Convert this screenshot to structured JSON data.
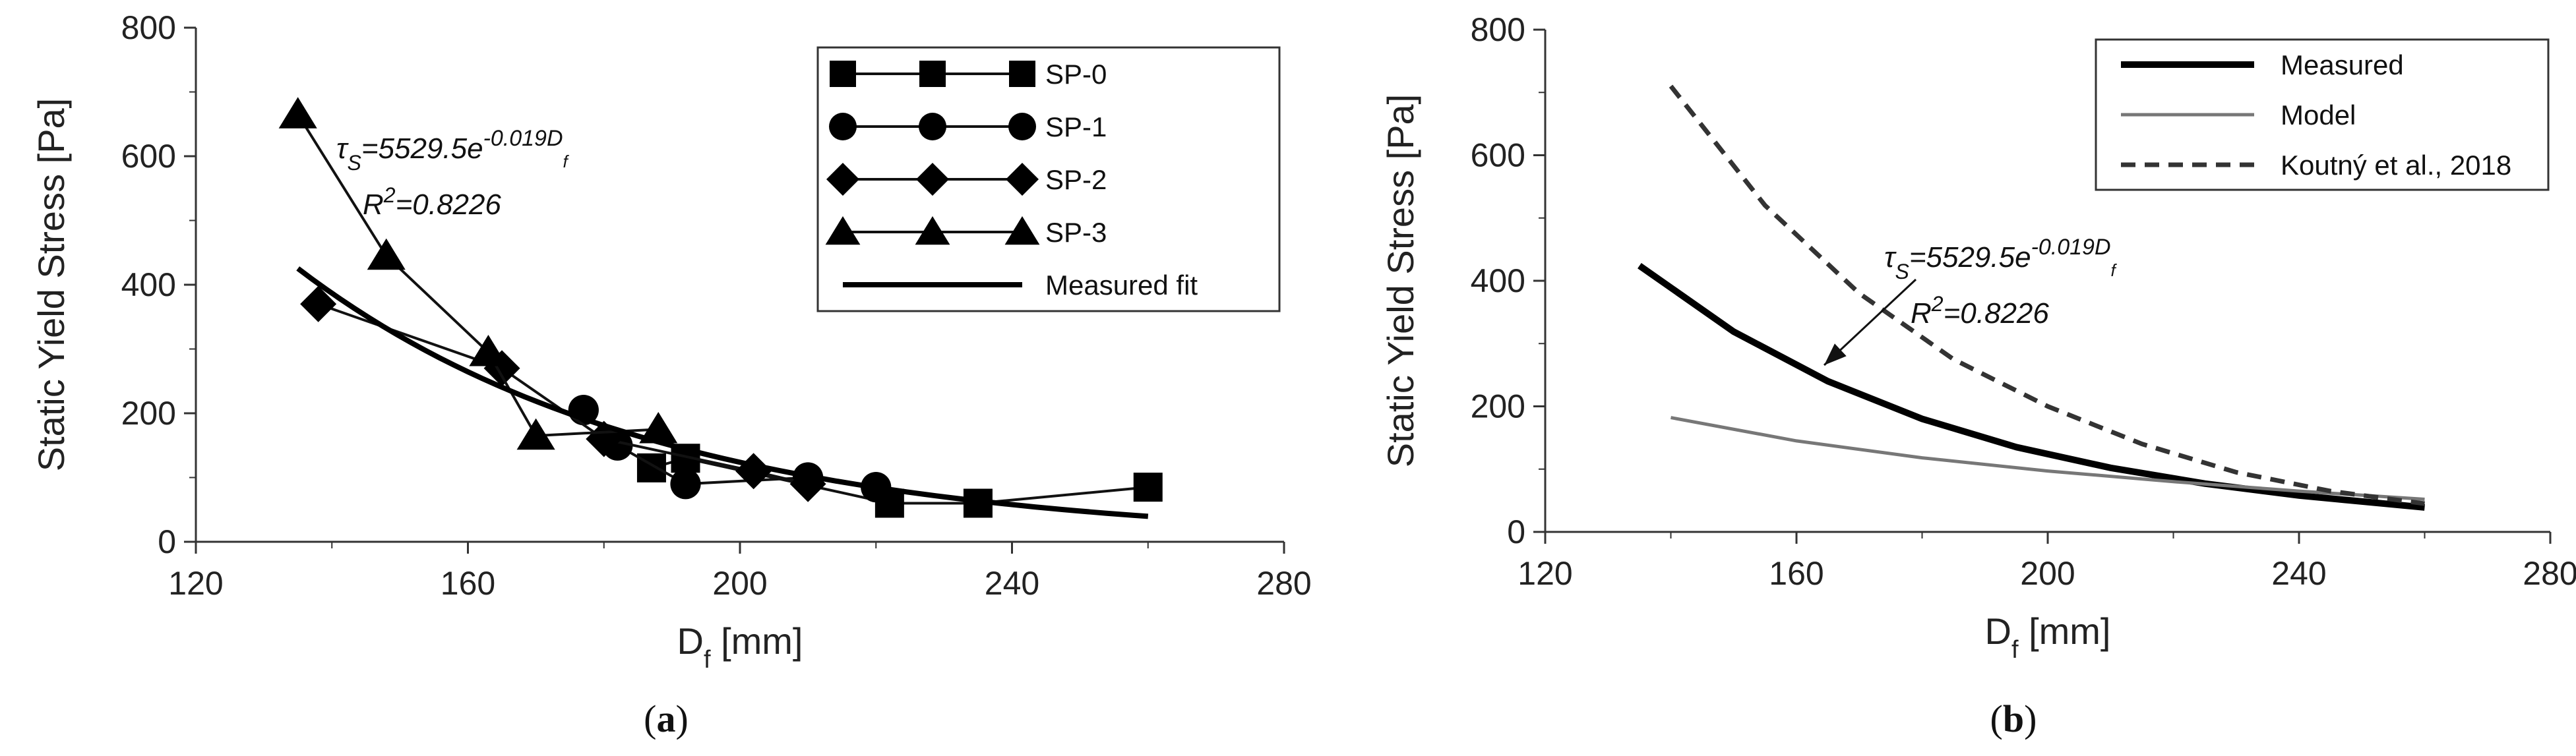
{
  "chart_data": [
    {
      "type": "line",
      "panel_label": "(a)",
      "panel_letter": "a",
      "xlabel": "D",
      "xlabel_sub": "f",
      "xlabel_unit": " [mm]",
      "ylabel": "Static Yield Stress [Pa]",
      "xlim": [
        120,
        280
      ],
      "ylim": [
        0,
        800
      ],
      "xticks": [
        "120",
        "160",
        "200",
        "240",
        "280"
      ],
      "yticks": [
        "0",
        "200",
        "400",
        "600",
        "800"
      ],
      "grid": false,
      "legend_position": "top-right",
      "annotation": {
        "line1": "τ",
        "line1_sub": "S",
        "line1_rest": "=5529.5e",
        "line1_sup": "-0.019D",
        "line1_sup_sub": "f",
        "line2": "R",
        "line2_sup": "2",
        "line2_rest": "=0.8226"
      },
      "series": [
        {
          "name": "SP-0",
          "marker": "square",
          "x": [
            187,
            192,
            222,
            235,
            260
          ],
          "y": [
            115,
            130,
            60,
            60,
            85
          ]
        },
        {
          "name": "SP-1",
          "marker": "circle",
          "x": [
            177,
            182,
            192,
            210,
            220
          ],
          "y": [
            205,
            150,
            90,
            100,
            85
          ]
        },
        {
          "name": "SP-2",
          "marker": "diamond",
          "x": [
            138,
            165,
            180,
            202,
            210
          ],
          "y": [
            370,
            270,
            160,
            110,
            90
          ]
        },
        {
          "name": "SP-3",
          "marker": "triangle",
          "x": [
            135,
            148,
            163,
            170,
            188
          ],
          "y": [
            665,
            445,
            295,
            165,
            175
          ]
        },
        {
          "name": "Measured fit",
          "marker": "none",
          "fit": {
            "a": 5529.5,
            "b": -0.019
          },
          "x_range": [
            135,
            260
          ]
        }
      ]
    },
    {
      "type": "line",
      "panel_label": "(b)",
      "panel_letter": "b",
      "xlabel": "D",
      "xlabel_sub": "f",
      "xlabel_unit": " [mm]",
      "ylabel": "Static Yield Stress [Pa]",
      "xlim": [
        120,
        280
      ],
      "ylim": [
        0,
        800
      ],
      "xticks": [
        "120",
        "160",
        "200",
        "240",
        "280"
      ],
      "yticks": [
        "0",
        "200",
        "400",
        "600",
        "800"
      ],
      "grid": false,
      "legend_position": "top-right",
      "annotation": {
        "line1": "τ",
        "line1_sub": "S",
        "line1_rest": "=5529.5e",
        "line1_sup": "-0.019D",
        "line1_sup_sub": "f",
        "line2": "R",
        "line2_sup": "2",
        "line2_rest": "=0.8226"
      },
      "series": [
        {
          "name": "Measured",
          "style": "thick",
          "x": [
            135,
            150,
            165,
            180,
            195,
            210,
            225,
            240,
            260
          ],
          "y": [
            424,
            319,
            240,
            180,
            135,
            102,
            77,
            58,
            39
          ]
        },
        {
          "name": "Model",
          "style": "thin-gray",
          "x": [
            140,
            160,
            180,
            200,
            220,
            240,
            260
          ],
          "y": [
            182,
            145,
            118,
            97,
            80,
            65,
            52
          ]
        },
        {
          "name": "Koutný et al., 2018",
          "style": "dashed",
          "x": [
            140,
            155,
            170,
            185,
            200,
            215,
            230,
            245,
            260
          ],
          "y": [
            710,
            520,
            380,
            275,
            200,
            140,
            95,
            65,
            45
          ]
        }
      ]
    }
  ]
}
